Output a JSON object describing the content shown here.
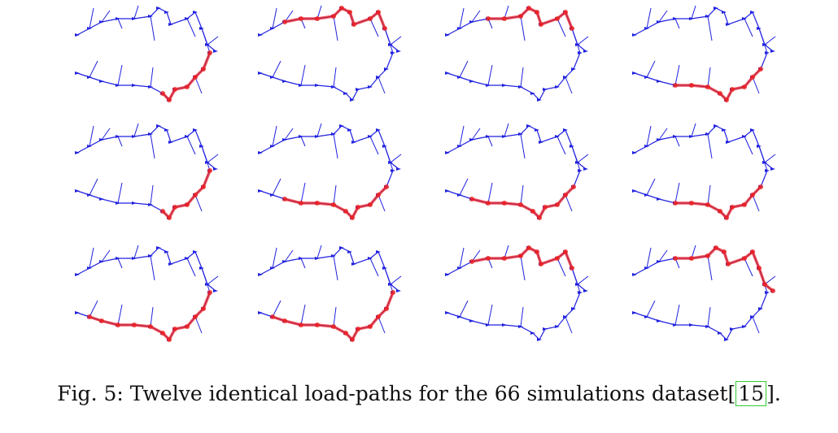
{
  "figure": {
    "panel_count": 12,
    "rows": 3,
    "cols": 4,
    "colors": {
      "structure": "#2020e0",
      "load_path": "#ee2222"
    }
  },
  "caption": {
    "prefix": "Fig. 5:",
    "text": "Twelve identical load-paths for the 66 simulations dataset",
    "ref_open": "[",
    "ref": "15",
    "ref_close": "]."
  }
}
